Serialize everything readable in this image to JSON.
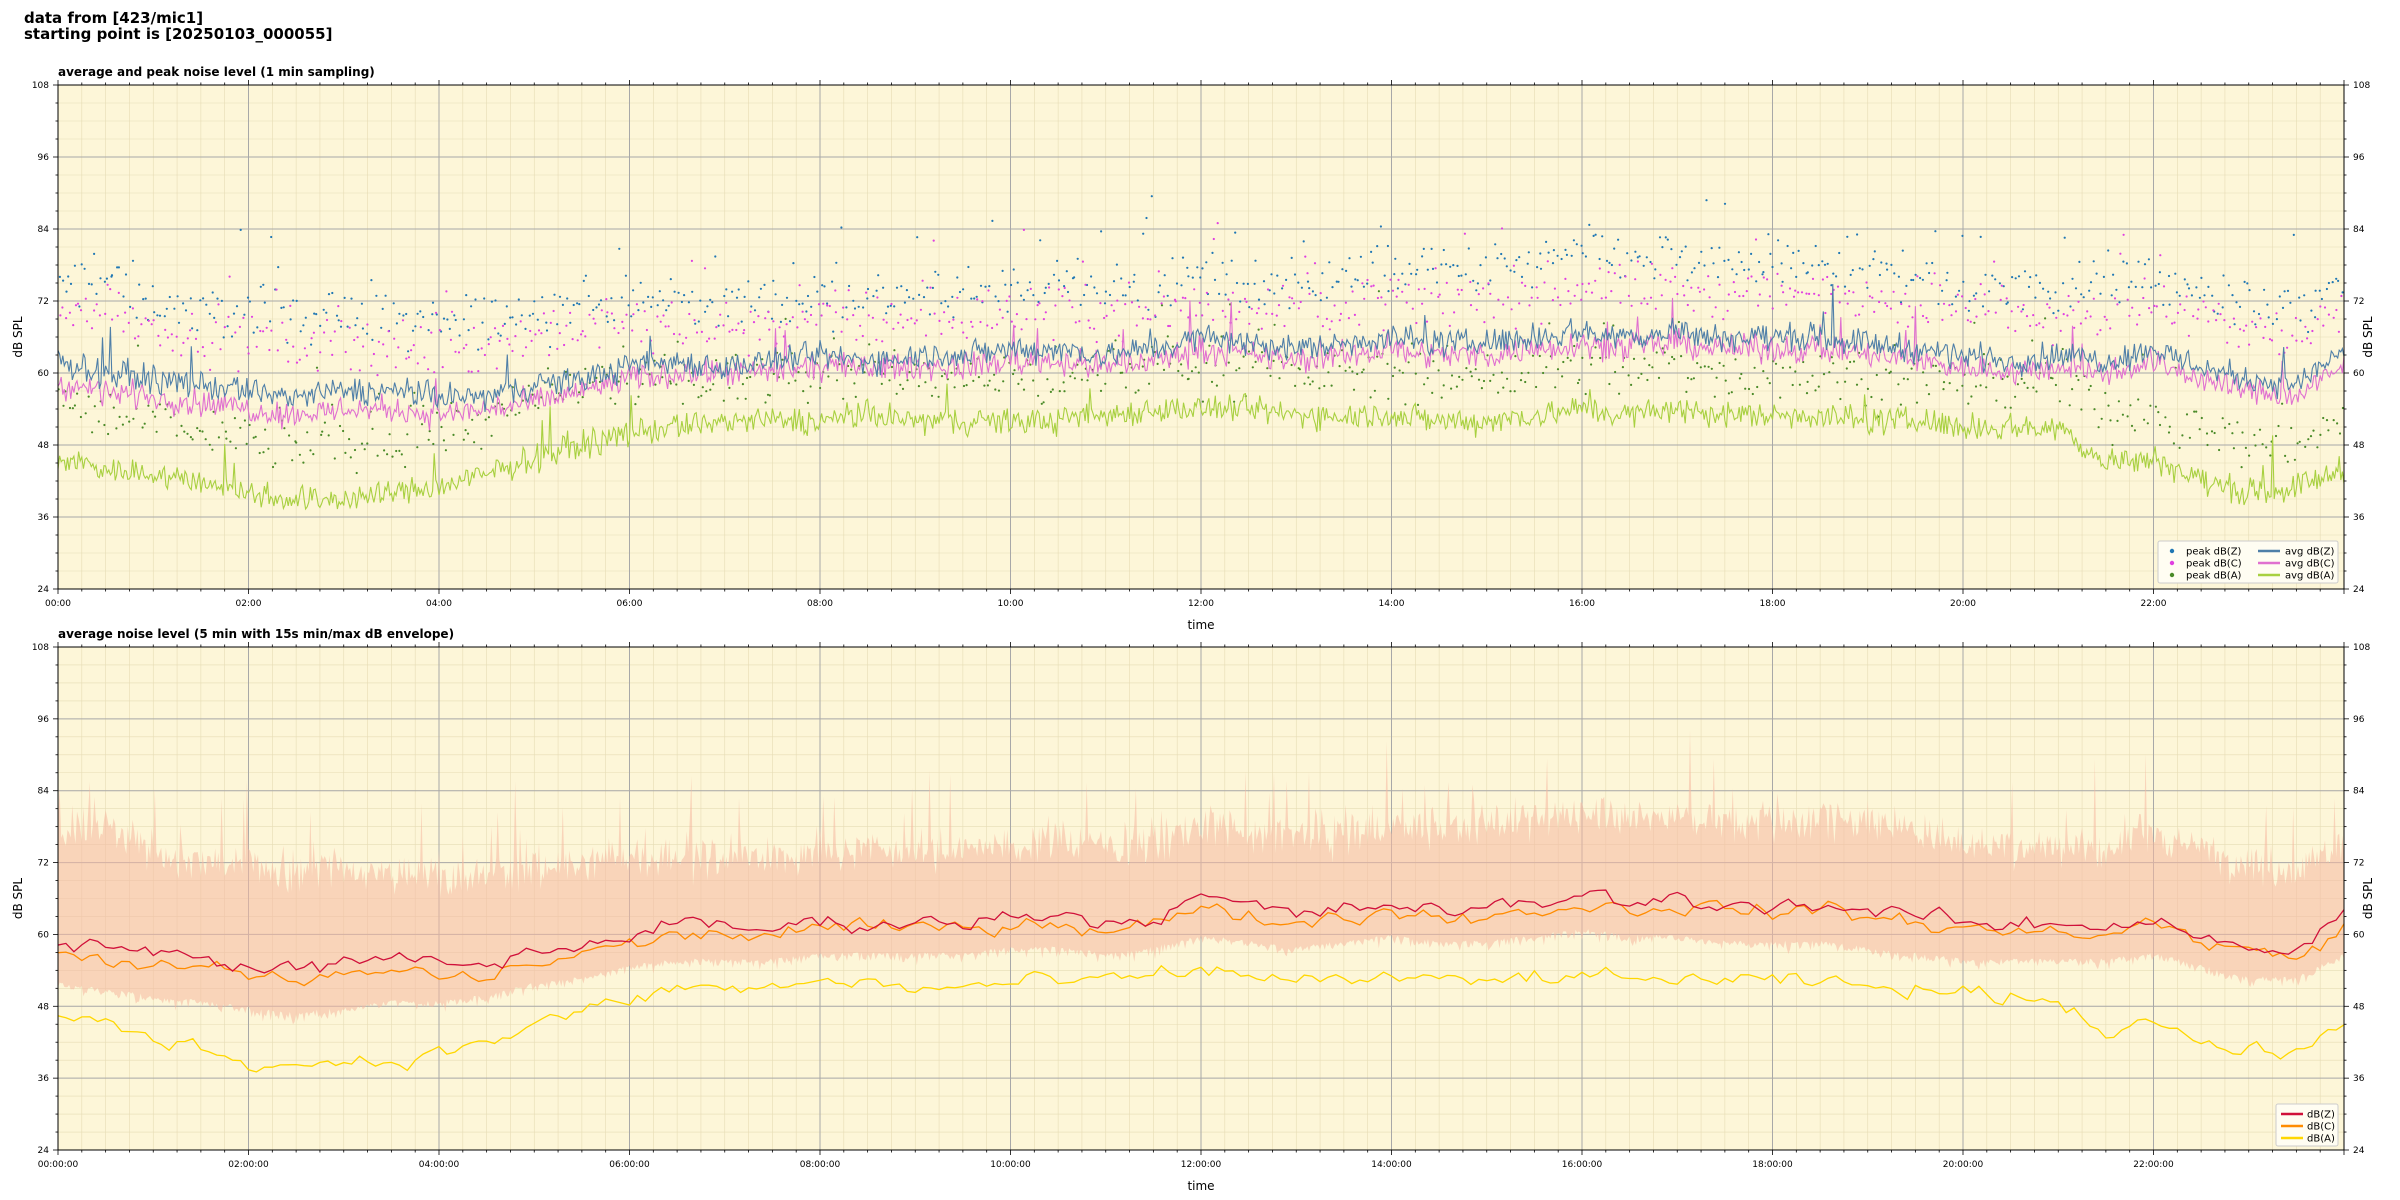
{
  "header": {
    "line1": "data from [423/mic1]",
    "line2": "starting point is [20250103_000055]"
  },
  "colors": {
    "plot_bg": "#fdf6d8",
    "peak_z": "#1f77b4",
    "peak_c": "#e040e0",
    "peak_a": "#4a8a28",
    "avg_z": "#4f7fa8",
    "avg_c": "#e070d0",
    "avg_a": "#a8d040",
    "env": "#f5b8a0",
    "db_z": "#d0103a",
    "db_c": "#ff8c00",
    "db_a": "#ffd700"
  },
  "chart_data": [
    {
      "type": "line",
      "title": "average and peak noise level (1 min sampling)",
      "xlabel": "time",
      "ylabel": "dB SPL",
      "xlim": [
        "00:00",
        "24:00"
      ],
      "ylim": [
        24,
        108
      ],
      "grid": true,
      "legend_position": "bottom-right",
      "x_tick_labels": [
        "00:00",
        "02:00",
        "04:00",
        "06:00",
        "08:00",
        "10:00",
        "12:00",
        "14:00",
        "16:00",
        "18:00",
        "20:00",
        "22:00"
      ],
      "y_tick_labels": [
        "24",
        "36",
        "48",
        "60",
        "72",
        "84",
        "96",
        "108"
      ],
      "x_hours": [
        0,
        0.5,
        1,
        1.5,
        2,
        2.5,
        3,
        3.5,
        4,
        4.5,
        5,
        5.5,
        6,
        6.5,
        7,
        7.5,
        8,
        8.5,
        9,
        9.5,
        10,
        10.5,
        11,
        11.5,
        12,
        12.5,
        13,
        13.5,
        14,
        14.5,
        15,
        15.5,
        16,
        16.5,
        17,
        17.5,
        18,
        18.5,
        19,
        19.5,
        20,
        20.5,
        21,
        21.5,
        22,
        22.5,
        23,
        23.5,
        24
      ],
      "series": [
        {
          "name": "avg dB(Z)",
          "style": "line",
          "values": [
            62,
            60,
            59,
            58,
            57,
            56,
            57,
            57,
            56,
            56,
            58,
            59,
            61,
            62,
            61,
            62,
            63,
            62,
            63,
            63,
            64,
            64,
            63,
            64,
            66,
            65,
            64,
            65,
            66,
            65,
            65,
            66,
            67,
            66,
            67,
            66,
            66,
            66,
            65,
            64,
            63,
            62,
            63,
            62,
            64,
            61,
            59,
            58,
            64
          ]
        },
        {
          "name": "avg dB(C)",
          "style": "line",
          "values": [
            58,
            57,
            56,
            55,
            54,
            53,
            54,
            54,
            53,
            54,
            55,
            57,
            59,
            60,
            60,
            60,
            61,
            61,
            61,
            61,
            62,
            62,
            61,
            62,
            64,
            63,
            62,
            63,
            64,
            63,
            63,
            64,
            65,
            64,
            65,
            64,
            64,
            64,
            63,
            62,
            61,
            60,
            61,
            60,
            62,
            59,
            57,
            56,
            61
          ]
        },
        {
          "name": "avg dB(A)",
          "style": "line",
          "values": [
            46,
            44,
            43,
            42,
            40,
            39,
            39,
            40,
            41,
            43,
            46,
            48,
            50,
            51,
            52,
            52,
            52,
            53,
            52,
            52,
            52,
            52,
            53,
            54,
            54,
            54,
            53,
            53,
            53,
            52,
            52,
            53,
            54,
            53,
            54,
            53,
            53,
            53,
            52,
            52,
            51,
            51,
            51,
            45,
            46,
            42,
            40,
            41,
            44
          ]
        },
        {
          "name": "peak dB(Z)",
          "style": "scatter",
          "values": [
            74,
            76,
            72,
            70,
            71,
            69,
            70,
            68,
            68,
            69,
            70,
            71,
            72,
            72,
            72,
            72,
            73,
            73,
            73,
            72,
            74,
            75,
            74,
            74,
            77,
            75,
            75,
            76,
            77,
            77,
            77,
            78,
            80,
            79,
            79,
            78,
            78,
            78,
            78,
            76,
            74,
            74,
            74,
            74,
            76,
            73,
            71,
            70,
            74
          ]
        },
        {
          "name": "peak dB(C)",
          "style": "scatter",
          "values": [
            70,
            71,
            68,
            66,
            66,
            64,
            65,
            64,
            64,
            65,
            66,
            67,
            68,
            68,
            68,
            68,
            69,
            69,
            69,
            69,
            70,
            71,
            70,
            70,
            72,
            71,
            71,
            72,
            72,
            72,
            72,
            73,
            75,
            74,
            74,
            73,
            73,
            73,
            73,
            72,
            70,
            70,
            70,
            70,
            72,
            69,
            67,
            66,
            70
          ]
        },
        {
          "name": "peak dB(A)",
          "style": "scatter",
          "values": [
            55,
            53,
            52,
            51,
            49,
            48,
            48,
            49,
            50,
            52,
            55,
            57,
            58,
            59,
            59,
            59,
            59,
            60,
            59,
            59,
            59,
            59,
            60,
            61,
            61,
            61,
            60,
            60,
            60,
            59,
            59,
            60,
            61,
            60,
            61,
            60,
            60,
            60,
            59,
            59,
            58,
            58,
            58,
            53,
            54,
            50,
            48,
            49,
            52
          ]
        }
      ]
    },
    {
      "type": "line",
      "title": "average noise level (5 min with 15s min/max dB envelope)",
      "xlabel": "time",
      "ylabel": "dB SPL",
      "xlim": [
        "00:00:00",
        "24:00:00"
      ],
      "ylim": [
        24,
        108
      ],
      "grid": true,
      "legend_position": "bottom-right",
      "x_tick_labels": [
        "00:00:00",
        "02:00:00",
        "04:00:00",
        "06:00:00",
        "08:00:00",
        "10:00:00",
        "12:00:00",
        "14:00:00",
        "16:00:00",
        "18:00:00",
        "20:00:00",
        "22:00:00"
      ],
      "y_tick_labels": [
        "24",
        "36",
        "48",
        "60",
        "72",
        "84",
        "96",
        "108"
      ],
      "x_hours": [
        0,
        0.5,
        1,
        1.5,
        2,
        2.5,
        3,
        3.5,
        4,
        4.5,
        5,
        5.5,
        6,
        6.5,
        7,
        7.5,
        8,
        8.5,
        9,
        9.5,
        10,
        10.5,
        11,
        11.5,
        12,
        12.5,
        13,
        13.5,
        14,
        14.5,
        15,
        15.5,
        16,
        16.5,
        17,
        17.5,
        18,
        18.5,
        19,
        19.5,
        20,
        20.5,
        21,
        21.5,
        22,
        22.5,
        23,
        23.5,
        24
      ],
      "series": [
        {
          "name": "dB(Z)",
          "values": [
            59,
            58,
            57,
            56,
            55,
            54,
            55,
            56,
            55,
            55,
            57,
            58,
            60,
            62,
            61,
            61,
            62,
            62,
            62,
            62,
            63,
            64,
            62,
            63,
            66,
            65,
            63,
            64,
            65,
            64,
            64,
            65,
            67,
            65,
            66,
            65,
            65,
            65,
            64,
            63,
            62,
            61,
            62,
            61,
            63,
            60,
            58,
            57,
            63
          ]
        },
        {
          "name": "dB(C)",
          "values": [
            57,
            56,
            55,
            54,
            53,
            52,
            53,
            54,
            53,
            53,
            55,
            57,
            58,
            60,
            60,
            60,
            61,
            61,
            61,
            61,
            62,
            62,
            61,
            62,
            64,
            63,
            62,
            63,
            64,
            63,
            63,
            64,
            65,
            64,
            65,
            64,
            64,
            64,
            63,
            62,
            61,
            60,
            61,
            60,
            62,
            59,
            57,
            56,
            61
          ]
        },
        {
          "name": "dB(A)",
          "values": [
            46,
            45,
            43,
            41,
            39,
            38,
            39,
            39,
            40,
            42,
            45,
            47,
            49,
            51,
            51,
            51,
            52,
            52,
            51,
            51,
            52,
            52,
            52,
            53,
            54,
            53,
            53,
            52,
            53,
            52,
            52,
            53,
            53,
            52,
            53,
            52,
            52,
            52,
            51,
            51,
            50,
            50,
            49,
            44,
            46,
            42,
            40,
            41,
            44
          ]
        },
        {
          "name": "envelope min",
          "style": "band",
          "values": [
            52,
            51,
            50,
            49,
            48,
            47,
            48,
            49,
            49,
            50,
            52,
            53,
            55,
            56,
            56,
            56,
            57,
            57,
            57,
            57,
            58,
            58,
            57,
            58,
            60,
            59,
            58,
            59,
            60,
            59,
            59,
            60,
            61,
            60,
            60,
            59,
            59,
            59,
            58,
            57,
            56,
            56,
            56,
            56,
            57,
            55,
            53,
            53,
            57
          ]
        },
        {
          "name": "envelope max",
          "style": "band",
          "values": [
            76,
            78,
            74,
            72,
            72,
            70,
            71,
            70,
            69,
            70,
            71,
            72,
            73,
            73,
            73,
            73,
            74,
            74,
            74,
            74,
            75,
            76,
            75,
            75,
            78,
            76,
            76,
            77,
            78,
            78,
            78,
            79,
            81,
            80,
            80,
            79,
            79,
            79,
            79,
            77,
            75,
            75,
            75,
            75,
            77,
            74,
            72,
            71,
            75
          ]
        }
      ]
    }
  ]
}
